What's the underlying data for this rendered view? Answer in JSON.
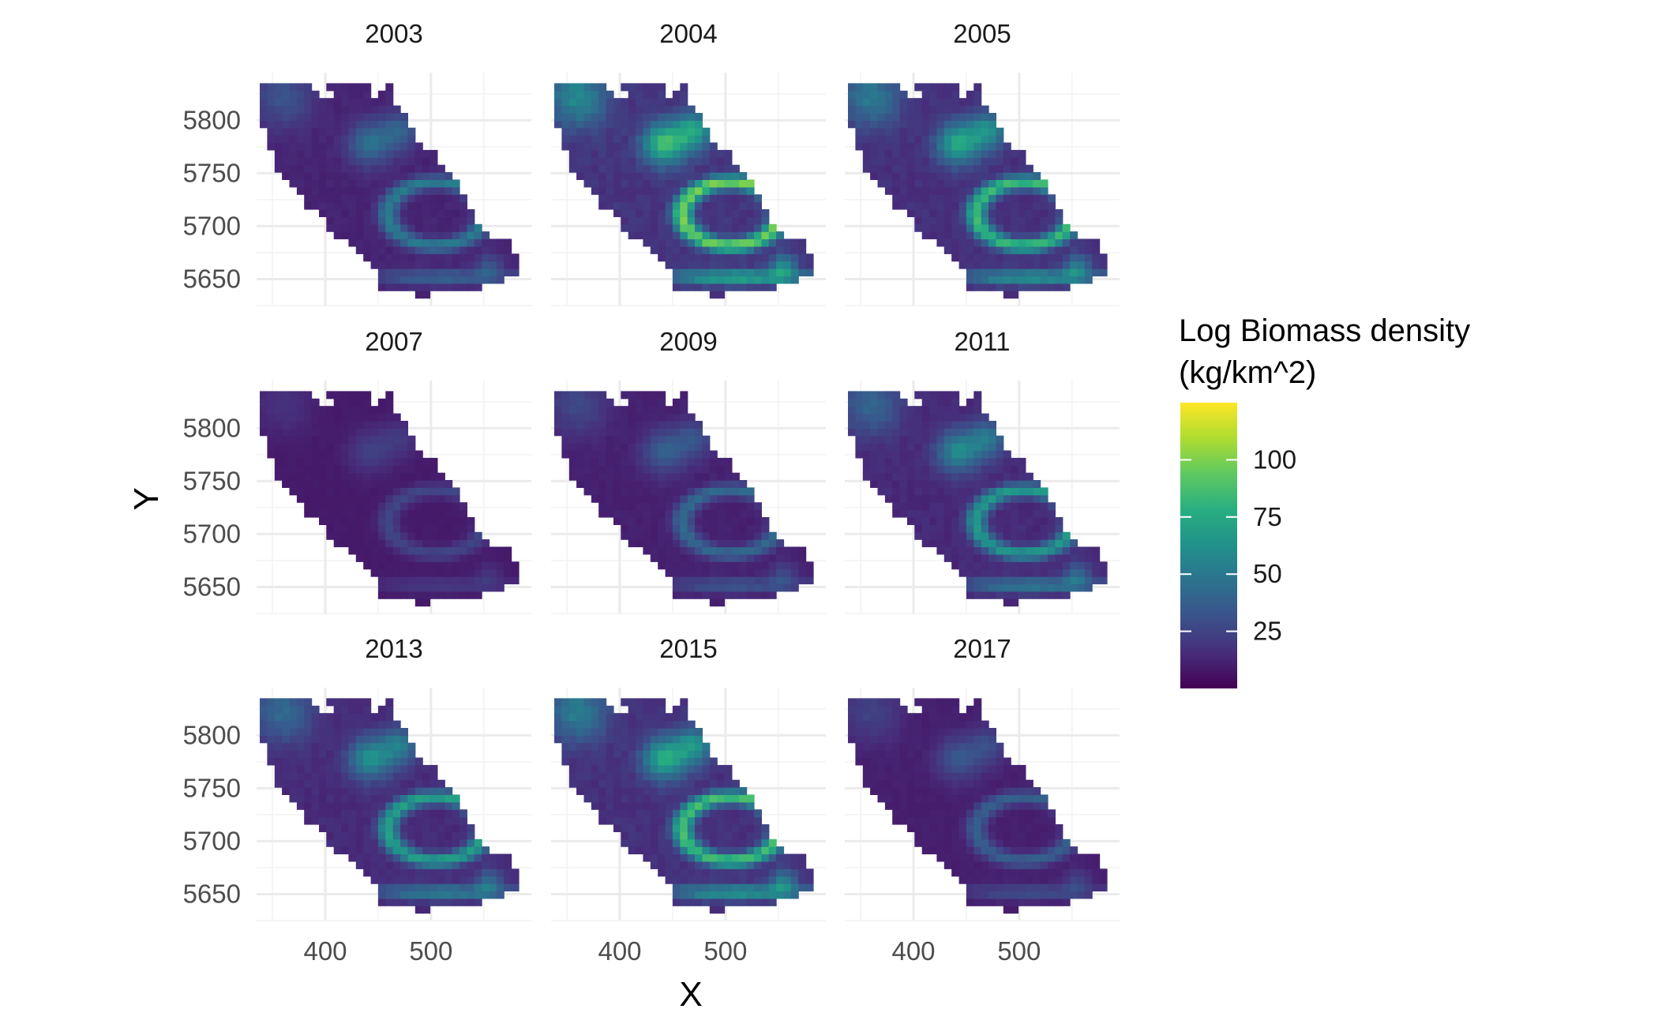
{
  "chart_data": {
    "type": "heatmap",
    "facet_titles": [
      "2003",
      "2004",
      "2005",
      "2007",
      "2009",
      "2011",
      "2013",
      "2015",
      "2017"
    ],
    "xlabel": "X",
    "ylabel": "Y",
    "x_ticks": [
      "400",
      "500"
    ],
    "y_ticks": [
      "5650",
      "5700",
      "5750",
      "5800"
    ],
    "xlim": [
      335,
      595
    ],
    "ylim": [
      5625,
      5845
    ],
    "x_breaks": [
      400,
      500
    ],
    "y_breaks": [
      5650,
      5700,
      5750,
      5800
    ],
    "legend": {
      "title_lines": [
        "Log Biomass density",
        "(kg/km^2)"
      ],
      "labels": [
        "100",
        "75",
        "50",
        "25"
      ],
      "breaks": [
        100,
        75,
        50,
        25
      ],
      "range": [
        0,
        125
      ],
      "position": "right"
    },
    "colormap": "viridis",
    "panel_intensity": [
      0.5,
      1.0,
      0.85,
      0.22,
      0.4,
      0.66,
      0.7,
      0.88,
      0.35
    ],
    "grid": true
  }
}
